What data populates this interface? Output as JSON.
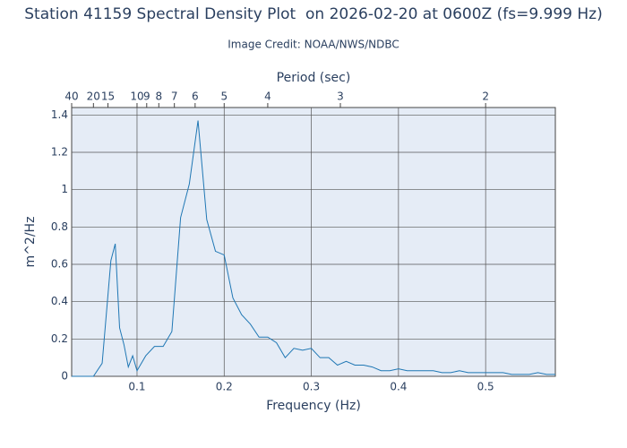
{
  "chart_data": {
    "type": "line",
    "title": "Station 41159 Spectral Density Plot  on 2026-02-20 at 0600Z (fs=9.999 Hz)",
    "subtitle": "Image Credit: NOAA/NWS/NDBC",
    "x_label": "Frequency (Hz)",
    "y_label": "m^2/Hz",
    "x2_label": "Period (sec)",
    "x2_scale": "reciprocal",
    "x": [
      0.025,
      0.035,
      0.045,
      0.05,
      0.06,
      0.07,
      0.075,
      0.08,
      0.085,
      0.09,
      0.095,
      0.1,
      0.11,
      0.12,
      0.13,
      0.14,
      0.15,
      0.16,
      0.17,
      0.18,
      0.19,
      0.2,
      0.21,
      0.22,
      0.23,
      0.24,
      0.25,
      0.26,
      0.27,
      0.28,
      0.29,
      0.3,
      0.31,
      0.32,
      0.33,
      0.34,
      0.35,
      0.36,
      0.37,
      0.38,
      0.39,
      0.4,
      0.41,
      0.42,
      0.43,
      0.44,
      0.45,
      0.46,
      0.47,
      0.48,
      0.49,
      0.5,
      0.51,
      0.52,
      0.53,
      0.54,
      0.55,
      0.56,
      0.57,
      0.58
    ],
    "series": [
      {
        "color": "#1f77b4",
        "values": [
          0,
          0,
          0,
          0,
          0.07,
          0.62,
          0.71,
          0.26,
          0.17,
          0.05,
          0.11,
          0.03,
          0.11,
          0.16,
          0.16,
          0.24,
          0.85,
          1.03,
          1.37,
          0.84,
          0.67,
          0.65,
          0.42,
          0.33,
          0.28,
          0.21,
          0.21,
          0.18,
          0.1,
          0.15,
          0.14,
          0.15,
          0.1,
          0.1,
          0.06,
          0.08,
          0.06,
          0.06,
          0.05,
          0.03,
          0.03,
          0.04,
          0.03,
          0.03,
          0.03,
          0.03,
          0.02,
          0.02,
          0.03,
          0.02,
          0.02,
          0.02,
          0.02,
          0.02,
          0.01,
          0.01,
          0.01,
          0.02,
          0.01,
          0.01
        ]
      }
    ],
    "xlim": [
      0.025,
      0.58
    ],
    "ylim": [
      0,
      1.44
    ],
    "xticks": [
      0.1,
      0.2,
      0.3,
      0.4,
      0.5
    ],
    "yticks": [
      0,
      0.2,
      0.4,
      0.6,
      0.8,
      1,
      1.2,
      1.4
    ],
    "x2ticks": [
      40,
      20,
      15,
      10,
      9,
      8,
      7,
      6,
      5,
      4,
      3,
      2
    ],
    "grid": true
  }
}
